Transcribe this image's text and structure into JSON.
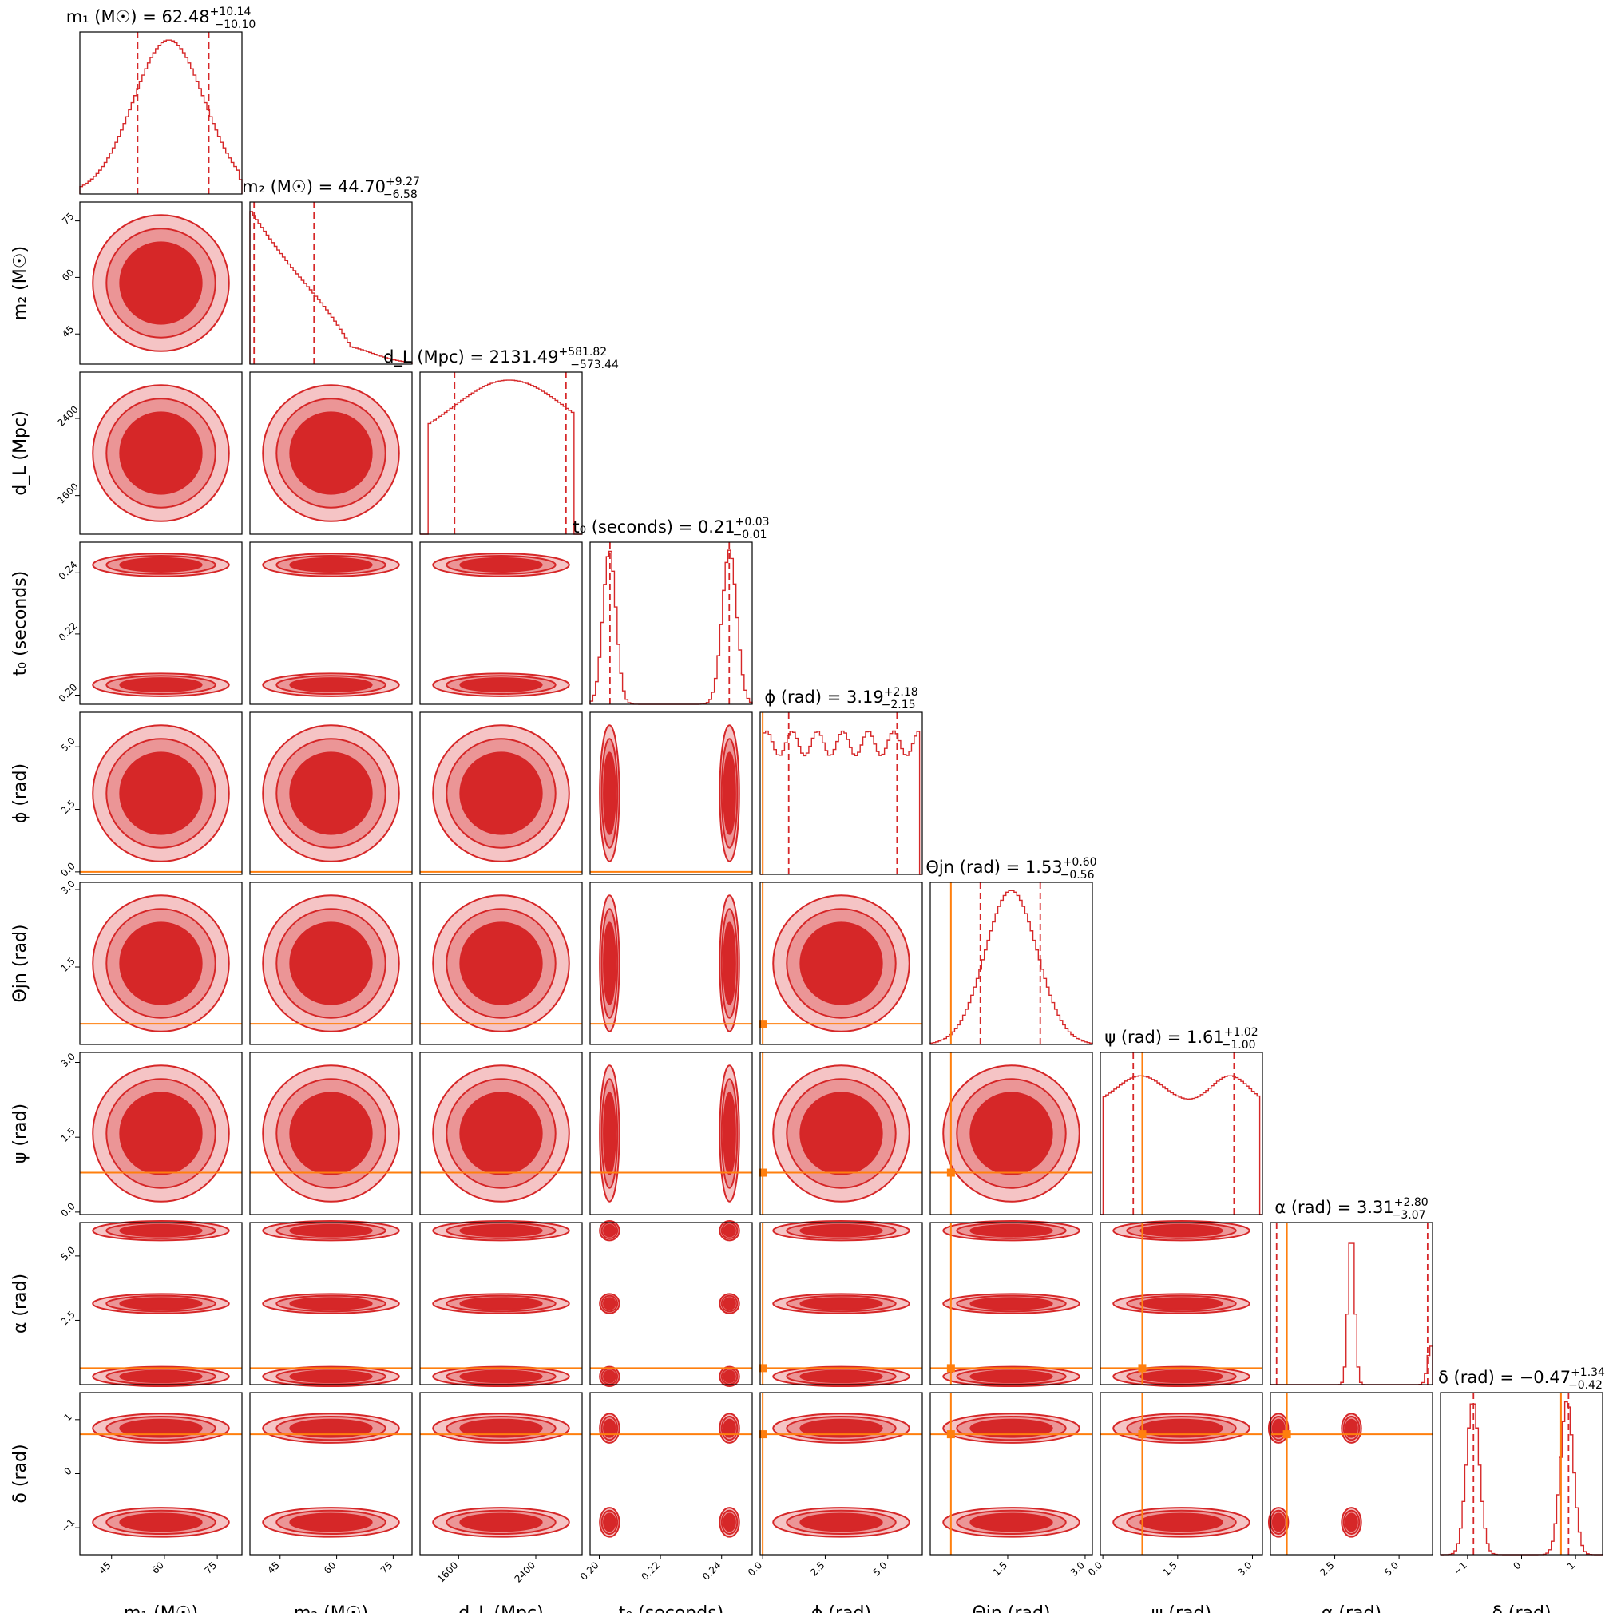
{
  "chart_data": {
    "type": "corner",
    "parameters": [
      {
        "key": "m1",
        "label": "m₁ (M☉)",
        "range": [
          36,
          82
        ],
        "ticks": [
          45,
          60,
          75
        ]
      },
      {
        "key": "m2",
        "label": "m₂ (M☉)",
        "range": [
          37,
          80
        ],
        "ticks": [
          45,
          60,
          75
        ]
      },
      {
        "key": "dL",
        "label": "d_L (Mpc)",
        "range": [
          1200,
          2880
        ],
        "ticks": [
          1600,
          2400
        ]
      },
      {
        "key": "t0",
        "label": "t₀ (seconds)",
        "range": [
          0.197,
          0.25
        ],
        "ticks": [
          0.2,
          0.22,
          0.24
        ]
      },
      {
        "key": "phi",
        "label": "ϕ (rad)",
        "range": [
          -0.1,
          6.38
        ],
        "ticks": [
          0.0,
          2.5,
          5.0
        ]
      },
      {
        "key": "theta_jn",
        "label": "Θjn (rad)",
        "range": [
          0.0,
          3.14
        ],
        "ticks": [
          1.5,
          3.0
        ]
      },
      {
        "key": "psi",
        "label": "ψ (rad)",
        "range": [
          -0.05,
          3.2
        ],
        "ticks": [
          0.0,
          1.5,
          3.0
        ]
      },
      {
        "key": "alpha",
        "label": "α (rad)",
        "range": [
          0.0,
          6.3
        ],
        "ticks": [
          2.5,
          5.0
        ]
      },
      {
        "key": "delta",
        "label": "δ (rad)",
        "range": [
          -1.5,
          1.5
        ],
        "ticks": [
          -1,
          0,
          1
        ]
      }
    ],
    "tick_labels": {
      "m1": [
        "45",
        "60",
        "75"
      ],
      "m2": [
        "45",
        "60",
        "75"
      ],
      "dL": [
        "1600",
        "2400"
      ],
      "t0": [
        "0.20",
        "0.22",
        "0.24"
      ],
      "phi": [
        "0.0",
        "2.5",
        "5.0"
      ],
      "theta_jn": [
        "1.5",
        "3.0"
      ],
      "psi": [
        "0.0",
        "1.5",
        "3.0"
      ],
      "alpha": [
        "2.5",
        "5.0"
      ],
      "delta": [
        "−1",
        "0",
        "1"
      ]
    },
    "titles": [
      {
        "param": "m1",
        "name": "m₁ (M☉)",
        "median": "62.48",
        "plus": "+10.14",
        "minus": "−10.10"
      },
      {
        "param": "m2",
        "name": "m₂ (M☉)",
        "median": "44.70",
        "plus": "+9.27",
        "minus": "−6.58"
      },
      {
        "param": "dL",
        "name": "d_L (Mpc)",
        "median": "2131.49",
        "plus": "+581.82",
        "minus": "−573.44"
      },
      {
        "param": "t0",
        "name": "t₀ (seconds)",
        "median": "0.21",
        "plus": "+0.03",
        "minus": "−0.01"
      },
      {
        "param": "phi",
        "name": "ϕ (rad)",
        "median": "3.19",
        "plus": "+2.18",
        "minus": "−2.15"
      },
      {
        "param": "theta_jn",
        "name": "Θjn (rad)",
        "median": "1.53",
        "plus": "+0.60",
        "minus": "−0.56"
      },
      {
        "param": "psi",
        "name": "ψ (rad)",
        "median": "1.61",
        "plus": "+1.02",
        "minus": "−1.00"
      },
      {
        "param": "alpha",
        "name": "α (rad)",
        "median": "3.31",
        "plus": "+2.80",
        "minus": "−3.07"
      },
      {
        "param": "delta",
        "name": "δ (rad)",
        "median": "−0.47",
        "plus": "+1.34",
        "minus": "−0.42"
      }
    ],
    "quantiles": {
      "m1": [
        52.4,
        72.6
      ],
      "m2": [
        38.1,
        54.0
      ],
      "dL": [
        1558,
        2713
      ],
      "t0": [
        0.2035,
        0.2425
      ],
      "phi": [
        1.04,
        5.37
      ],
      "theta_jn": [
        0.97,
        2.13
      ],
      "psi": [
        0.61,
        2.63
      ],
      "alpha": [
        0.24,
        6.11
      ],
      "delta": [
        -0.89,
        0.87
      ]
    },
    "truths": {
      "m1": null,
      "m2": null,
      "dL": null,
      "t0": null,
      "phi": 0.0,
      "theta_jn": 0.4,
      "psi": 0.79,
      "alpha": 0.64,
      "delta": 0.73
    },
    "colors": {
      "posterior": "#d62728",
      "truth": "#ff7f0e"
    }
  }
}
